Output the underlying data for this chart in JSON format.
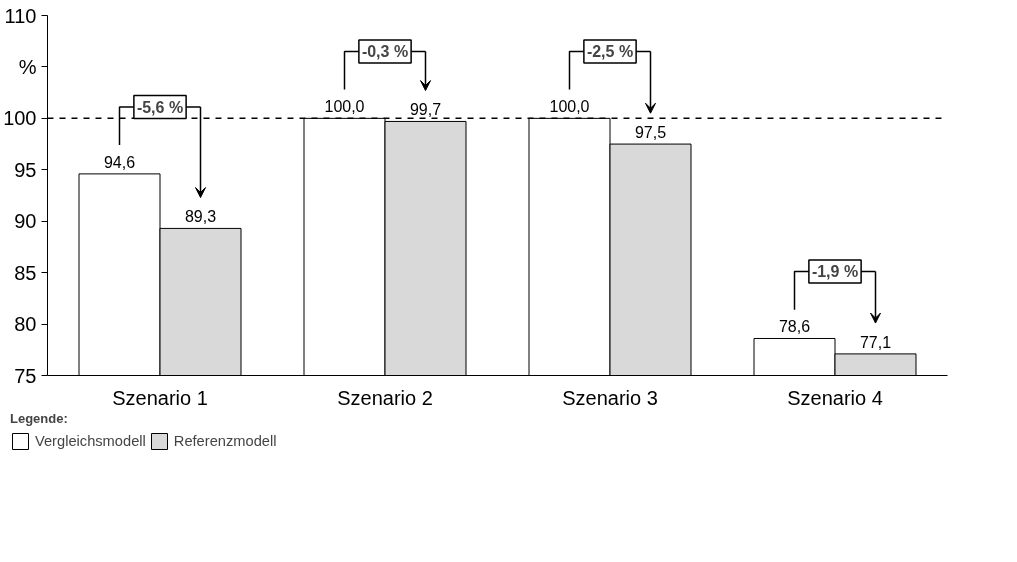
{
  "chart_data": {
    "type": "bar",
    "categories": [
      "Szenario 1",
      "Szenario 2",
      "Szenario 3",
      "Szenario 4"
    ],
    "series": [
      {
        "name": "Vergleichsmodell",
        "color": "#ffffff",
        "values": [
          94.6,
          100.0,
          100.0,
          78.6
        ],
        "value_labels": [
          "94,6",
          "100,0",
          "100,0",
          "78,6"
        ]
      },
      {
        "name": "Referenzmodell",
        "color": "#d9d9d9",
        "values": [
          89.3,
          99.7,
          97.5,
          77.1
        ],
        "value_labels": [
          "89,3",
          "99,7",
          "97,5",
          "77,1"
        ]
      }
    ],
    "ylim": [
      75,
      110
    ],
    "yticks": [
      75,
      80,
      85,
      90,
      95,
      100,
      {
        "value": 105,
        "label": "%"
      },
      110
    ],
    "ref_lines": [
      {
        "axis": "y",
        "value": 100,
        "line_style": "dashed",
        "color": "#000000"
      }
    ],
    "annotations": [
      "-5,6 %",
      "-0,3 %",
      "-2,5 %",
      "-1,9 %"
    ],
    "legend_title": "Legende:",
    "legend": "bottom",
    "grid": false
  }
}
